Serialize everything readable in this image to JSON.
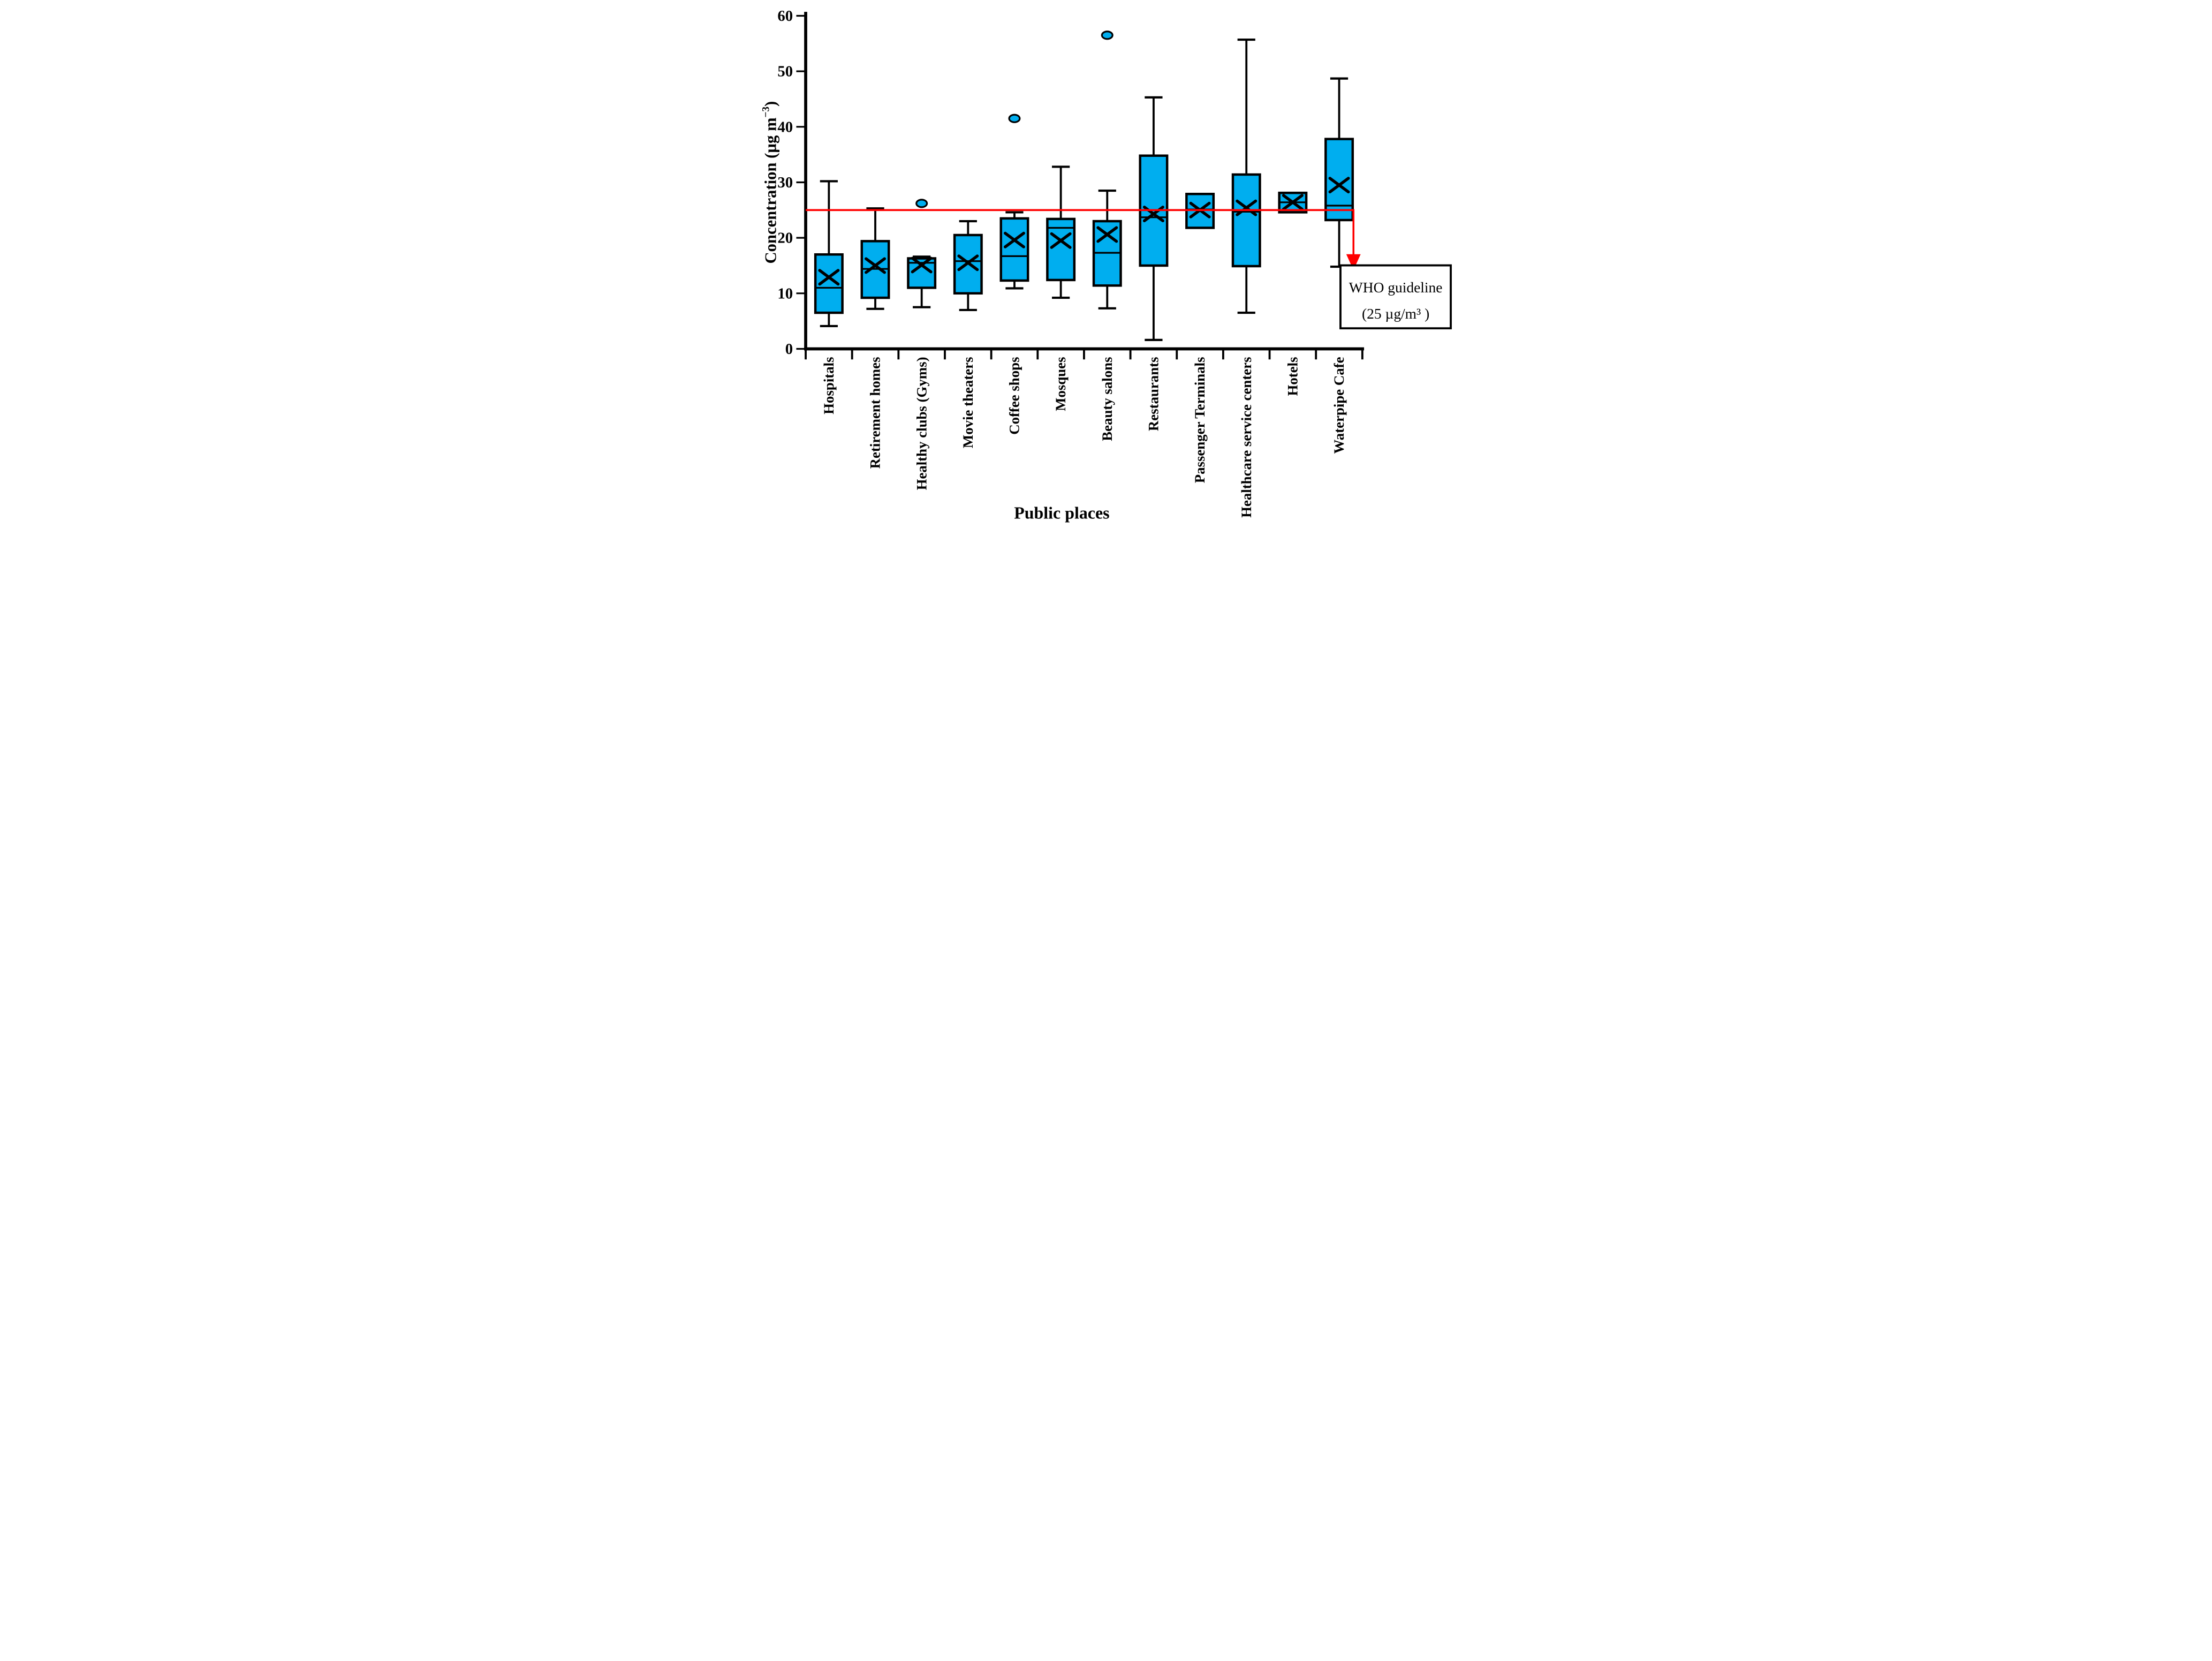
{
  "chart_data": {
    "type": "box",
    "title": "",
    "xlabel": "Public places",
    "ylabel": "Concentration (µg m⁻³)",
    "ylabel_parts": {
      "pre": "Concentration (µg m",
      "sup": "−3",
      "post": ")"
    },
    "ylim": [
      0,
      60
    ],
    "yticks": [
      0,
      10,
      20,
      30,
      40,
      50,
      60
    ],
    "grid": false,
    "legend_position": "none",
    "box_fill_color": "#00AEEF",
    "ink_color": "#000000",
    "background_color": "#FFFFFF",
    "categories": [
      "Hospitals",
      "Retirement homes",
      "Healthy clubs (Gyms)",
      "Movie theaters",
      "Coffee shops",
      "Mosques",
      "Beauty salons",
      "Restaurants",
      "Passenger Terminals",
      "Healthcare service centers",
      "Hotels",
      "Waterpipe Cafe"
    ],
    "series": [
      {
        "name": "Hospitals",
        "whisker_low": 4.1,
        "q1": 6.5,
        "median": 11.0,
        "q3": 17.0,
        "whisker_high": 30.2,
        "mean": 12.9,
        "outliers": []
      },
      {
        "name": "Retirement homes",
        "whisker_low": 7.2,
        "q1": 9.2,
        "median": 14.4,
        "q3": 19.4,
        "whisker_high": 25.3,
        "mean": 15.0,
        "outliers": []
      },
      {
        "name": "Healthy clubs (Gyms)",
        "whisker_low": 7.5,
        "q1": 11.0,
        "median": 15.5,
        "q3": 16.3,
        "whisker_high": 16.6,
        "mean": 15.1,
        "outliers": [
          26.2
        ]
      },
      {
        "name": "Movie theaters",
        "whisker_low": 7.0,
        "q1": 10.0,
        "median": 15.8,
        "q3": 20.5,
        "whisker_high": 23.0,
        "mean": 15.5,
        "outliers": []
      },
      {
        "name": "Coffee shops",
        "whisker_low": 10.9,
        "q1": 12.3,
        "median": 16.7,
        "q3": 23.5,
        "whisker_high": 24.6,
        "mean": 19.6,
        "outliers": [
          41.5
        ]
      },
      {
        "name": "Mosques",
        "whisker_low": 9.2,
        "q1": 12.4,
        "median": 21.8,
        "q3": 23.4,
        "whisker_high": 32.8,
        "mean": 19.5,
        "outliers": []
      },
      {
        "name": "Beauty salons",
        "whisker_low": 7.3,
        "q1": 11.4,
        "median": 17.3,
        "q3": 23.0,
        "whisker_high": 28.5,
        "mean": 20.6,
        "outliers": [
          56.5
        ]
      },
      {
        "name": "Restaurants",
        "whisker_low": 1.6,
        "q1": 15.0,
        "median": 23.7,
        "q3": 34.8,
        "whisker_high": 45.3,
        "mean": 24.3,
        "outliers": []
      },
      {
        "name": "Passenger Terminals",
        "whisker_low": null,
        "q1": 21.8,
        "median": 25.1,
        "q3": 27.9,
        "whisker_high": null,
        "mean": 25.0,
        "outliers": []
      },
      {
        "name": "Healthcare service centers",
        "whisker_low": 6.5,
        "q1": 14.9,
        "median": 24.7,
        "q3": 31.4,
        "whisker_high": 55.7,
        "mean": 25.4,
        "outliers": []
      },
      {
        "name": "Hotels",
        "whisker_low": null,
        "q1": 24.6,
        "median": 26.4,
        "q3": 28.1,
        "whisker_high": null,
        "mean": 26.4,
        "outliers": []
      },
      {
        "name": "Waterpipe Cafe",
        "whisker_low": 14.8,
        "q1": 23.2,
        "median": 25.8,
        "q3": 37.8,
        "whisker_high": 48.7,
        "mean": 29.5,
        "outliers": []
      }
    ],
    "guideline": {
      "value": 25,
      "color": "#FF0000",
      "annotation_line1": "WHO guideline",
      "annotation_line2": "(25 µg/m³ )"
    }
  }
}
